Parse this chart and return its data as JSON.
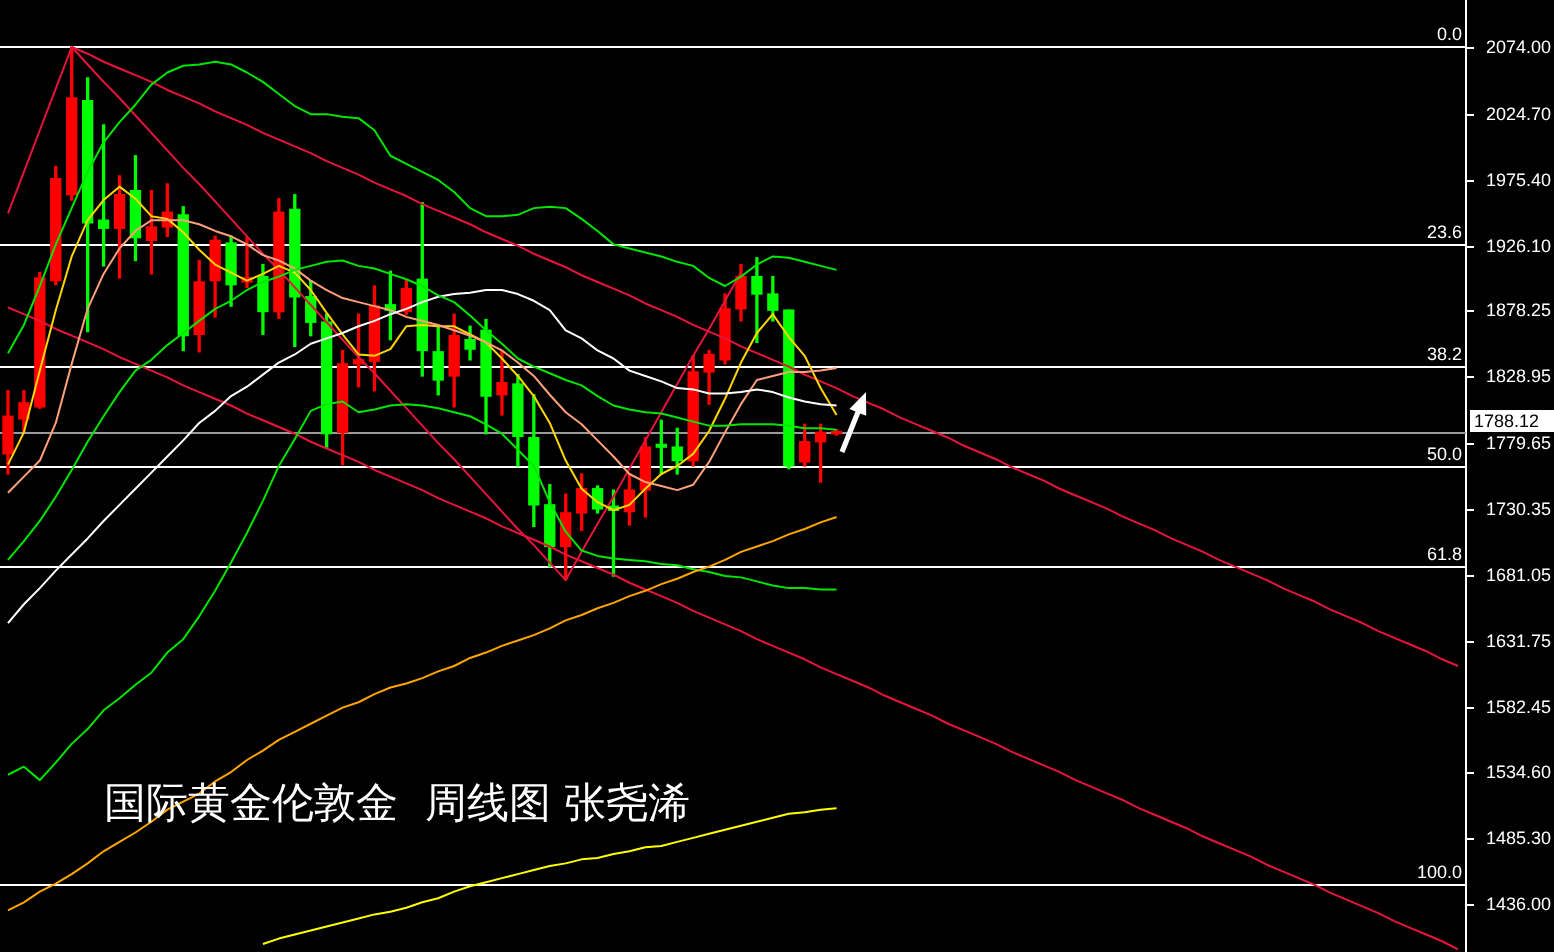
{
  "chart_data": {
    "type": "candlestick",
    "title": "国际黄金伦敦金  周线图 张尧浠",
    "categories": [
      null,
      null,
      null,
      null,
      null,
      null,
      null,
      null,
      null,
      null,
      null,
      null,
      null,
      null,
      null,
      null,
      null,
      null,
      null,
      null,
      null,
      null,
      null,
      null,
      null,
      null,
      null,
      null,
      null,
      null,
      null,
      null,
      null,
      null,
      null,
      null,
      null,
      null,
      null,
      null,
      null,
      null,
      null,
      null,
      null,
      null,
      null,
      null,
      null,
      null,
      null,
      null,
      null,
      null,
      null,
      null,
      null,
      null,
      null,
      null,
      null,
      null,
      null,
      null,
      null,
      null,
      null,
      null,
      null,
      null,
      null,
      null,
      null,
      null,
      null,
      null,
      null,
      null,
      null,
      null,
      null,
      null,
      null,
      null,
      null,
      null,
      null,
      null,
      null,
      null,
      null,
      null
    ],
    "ohlc": [
      [
        1772,
        1819,
        1757,
        1800
      ],
      [
        1798,
        1819,
        1789,
        1810
      ],
      [
        1807,
        1907,
        1806,
        1903
      ],
      [
        1901,
        1986,
        1898,
        1977
      ],
      [
        1965,
        2075,
        1961,
        2037
      ],
      [
        2035,
        2052,
        1863,
        1944
      ],
      [
        1946,
        2017,
        1912,
        1940
      ],
      [
        1940,
        1979,
        1903,
        1965
      ],
      [
        1968,
        1994,
        1916,
        1933
      ],
      [
        1931,
        1968,
        1906,
        1941
      ],
      [
        1941,
        1973,
        1934,
        1952
      ],
      [
        1950,
        1956,
        1849,
        1860
      ],
      [
        1861,
        1916,
        1848,
        1900
      ],
      [
        1901,
        1934,
        1874,
        1931
      ],
      [
        1929,
        1934,
        1882,
        1898
      ],
      [
        1900,
        1933,
        1896,
        1903
      ],
      [
        1904,
        1913,
        1861,
        1878
      ],
      [
        1878,
        1962,
        1873,
        1952
      ],
      [
        1954,
        1965,
        1852,
        1889
      ],
      [
        1889,
        1901,
        1860,
        1870
      ],
      [
        1870,
        1876,
        1777,
        1787
      ],
      [
        1788,
        1849,
        1764,
        1839
      ],
      [
        1839,
        1876,
        1822,
        1842
      ],
      [
        1841,
        1897,
        1819,
        1882
      ],
      [
        1883,
        1908,
        1857,
        1879
      ],
      [
        1878,
        1901,
        1876,
        1895
      ],
      [
        1902,
        1959,
        1830,
        1849
      ],
      [
        1848,
        1867,
        1816,
        1827
      ],
      [
        1830,
        1876,
        1807,
        1860
      ],
      [
        1857,
        1867,
        1842,
        1850
      ],
      [
        1864,
        1872,
        1787,
        1815
      ],
      [
        1816,
        1849,
        1801,
        1825
      ],
      [
        1824,
        1831,
        1763,
        1785
      ],
      [
        1784,
        1816,
        1718,
        1734
      ],
      [
        1734,
        1749,
        1688,
        1703
      ],
      [
        1703,
        1742,
        1678,
        1728
      ],
      [
        1728,
        1757,
        1715,
        1746
      ],
      [
        1746,
        1748,
        1728,
        1731
      ],
      [
        1733,
        1745,
        1681,
        1730
      ],
      [
        1729,
        1757,
        1719,
        1745
      ],
      [
        1745,
        1784,
        1725,
        1777
      ],
      [
        1779,
        1797,
        1757,
        1777
      ],
      [
        1777,
        1791,
        1757,
        1767
      ],
      [
        1767,
        1845,
        1763,
        1833
      ],
      [
        1833,
        1849,
        1809,
        1846
      ],
      [
        1842,
        1891,
        1839,
        1880
      ],
      [
        1880,
        1913,
        1871,
        1904
      ],
      [
        1904,
        1918,
        1855,
        1891
      ],
      [
        1891,
        1904,
        1871,
        1879
      ],
      [
        1879,
        1879,
        1761,
        1763
      ],
      [
        1766,
        1794,
        1763,
        1781
      ],
      [
        1781,
        1794,
        1751,
        1788
      ],
      [
        1787,
        1790,
        1786,
        1788.12
      ],
      null,
      null,
      null,
      null,
      null,
      null,
      null,
      null,
      null,
      null,
      null,
      null,
      null,
      null,
      null,
      null,
      null,
      null,
      null,
      null,
      null,
      null,
      null,
      null,
      null,
      null,
      null,
      null,
      null,
      null,
      null,
      null,
      null,
      null,
      null,
      null,
      null,
      null,
      null
    ],
    "colors": [
      "#ff0000",
      "#ff0000",
      "#ff0000",
      "#ff0000",
      "#ff0000",
      "#00ff00",
      "#00ff00",
      "#ff0000",
      "#00ff00",
      "#ff0000",
      "#ff0000",
      "#00ff00",
      "#ff0000",
      "#ff0000",
      "#00ff00",
      "#ff0000",
      "#00ff00",
      "#ff0000",
      "#00ff00",
      "#00ff00",
      "#00ff00",
      "#ff0000",
      "#ff0000",
      "#ff0000",
      "#00ff00",
      "#ff0000",
      "#00ff00",
      "#00ff00",
      "#ff0000",
      "#00ff00",
      "#00ff00",
      "#ff0000",
      "#00ff00",
      "#00ff00",
      "#00ff00",
      "#ff0000",
      "#ff0000",
      "#00ff00",
      "#00ff00",
      "#ff0000",
      "#ff0000",
      "#00ff00",
      "#00ff00",
      "#ff0000",
      "#ff0000",
      "#ff0000",
      "#ff0000",
      "#00ff00",
      "#00ff00",
      "#00ff00",
      "#ff0000",
      "#ff0000",
      "#ff0000",
      null,
      null,
      null,
      null,
      null,
      null,
      null,
      null,
      null,
      null,
      null,
      null,
      null,
      null,
      null,
      null,
      null,
      null,
      null,
      null,
      null,
      null,
      null,
      null,
      null,
      null,
      null,
      null,
      null,
      null,
      null,
      null,
      null,
      null,
      null,
      null,
      null,
      null,
      null
    ],
    "series": [
      {
        "type": "line",
        "color": "#ffff00",
        "values": [
          null,
          null,
          null,
          null,
          null,
          null,
          null,
          null,
          null,
          null,
          null,
          null,
          null,
          null,
          null,
          null,
          1407,
          1411,
          1414,
          1417,
          1420,
          1423,
          1426,
          1429,
          1431,
          1434,
          1438,
          1441,
          1446,
          1450,
          1453,
          1456,
          1459,
          1462,
          1465,
          1467,
          1470,
          1471,
          1474,
          1476,
          1479,
          1480,
          1483,
          1486,
          1489,
          1492,
          1495,
          1498,
          1501,
          1504,
          1505,
          1507,
          1508,
          null,
          null,
          null,
          null,
          null,
          null,
          null,
          null,
          null,
          null,
          null,
          null,
          null,
          null,
          null,
          null,
          null,
          null,
          null,
          null,
          null,
          null,
          null,
          null,
          null,
          null,
          null,
          null,
          null,
          null,
          null,
          null,
          null,
          null,
          null,
          null,
          null,
          null,
          null
        ]
      },
      {
        "type": "line",
        "color": "#ffa500",
        "values": [
          1432,
          1438,
          1446,
          1452,
          1459,
          1467,
          1476,
          1483,
          1490,
          1498,
          1507,
          1513,
          1519,
          1528,
          1535,
          1544,
          1551,
          1559,
          1565,
          1571,
          1577,
          1583,
          1587,
          1593,
          1598,
          1601,
          1605,
          1610,
          1614,
          1620,
          1624,
          1629,
          1633,
          1637,
          1642,
          1648,
          1652,
          1657,
          1661,
          1666,
          1670,
          1675,
          1679,
          1684,
          1688,
          1693,
          1699,
          1703,
          1707,
          1712,
          1716,
          1721,
          1725,
          null,
          null,
          null,
          null,
          null,
          null,
          null,
          null,
          null,
          null,
          null,
          null,
          null,
          null,
          null,
          null,
          null,
          null,
          null,
          null,
          null,
          null,
          null,
          null,
          null,
          null,
          null,
          null,
          null,
          null,
          null,
          null,
          null,
          null,
          null,
          null,
          null,
          null,
          null
        ]
      },
      {
        "type": "line",
        "color": "#00e600",
        "values": [
          1847,
          1868,
          1897,
          1928,
          1955,
          1982,
          2004,
          2019,
          2032,
          2047,
          2056,
          2061,
          2062,
          2064,
          2062,
          2056,
          2049,
          2040,
          2031,
          2025,
          2025,
          2023,
          2022,
          2013,
          1994,
          1988,
          1982,
          1976,
          1967,
          1955,
          1949,
          1949,
          1950,
          1955,
          1956,
          1955,
          1947,
          1938,
          1928,
          1925,
          1922,
          1919,
          1915,
          1912,
          1903,
          1897,
          1904,
          1913,
          1919,
          1918,
          1915,
          1912,
          1909,
          null,
          null,
          null,
          null,
          null,
          null,
          null,
          null,
          null,
          null,
          null,
          null,
          null,
          null,
          null,
          null,
          null,
          null,
          null,
          null,
          null,
          null,
          null,
          null,
          null,
          null,
          null,
          null,
          null,
          null,
          null,
          null,
          null,
          null,
          null,
          null,
          null,
          null,
          null
        ]
      },
      {
        "type": "line",
        "color": "#00e600",
        "values": [
          1693,
          1707,
          1722,
          1740,
          1760,
          1781,
          1800,
          1818,
          1834,
          1842,
          1853,
          1862,
          1871,
          1880,
          1886,
          1894,
          1900,
          1904,
          1909,
          1912,
          1915,
          1916,
          1912,
          1910,
          1906,
          1902,
          1897,
          1890,
          1885,
          1875,
          1864,
          1854,
          1843,
          1837,
          1832,
          1827,
          1823,
          1815,
          1808,
          1805,
          1803,
          1802,
          1799,
          1796,
          1793,
          1793,
          1794,
          1794,
          1794,
          1793,
          1791,
          1791,
          1790,
          null,
          null,
          null,
          null,
          null,
          null,
          null,
          null,
          null,
          null,
          null,
          null,
          null,
          null,
          null,
          null,
          null,
          null,
          null,
          null,
          null,
          null,
          null,
          null,
          null,
          null,
          null,
          null,
          null,
          null,
          null,
          null,
          null,
          null,
          null,
          null,
          null,
          null,
          null
        ]
      },
      {
        "type": "line",
        "color": "#00e600",
        "values": [
          1533,
          1539,
          1529,
          1542,
          1556,
          1567,
          1581,
          1590,
          1600,
          1609,
          1624,
          1634,
          1651,
          1670,
          1691,
          1713,
          1737,
          1763,
          1783,
          1804,
          1809,
          1811,
          1803,
          1805,
          1808,
          1809,
          1808,
          1806,
          1803,
          1800,
          1794,
          1787,
          1775,
          1763,
          1736,
          1714,
          1700,
          1696,
          1694,
          1693,
          1692,
          1690,
          1689,
          1686,
          1684,
          1681,
          1680,
          1677,
          1674,
          1672,
          1672,
          1671,
          1671,
          null,
          null,
          null,
          null,
          null,
          null,
          null,
          null,
          null,
          null,
          null,
          null,
          null,
          null,
          null,
          null,
          null,
          null,
          null,
          null,
          null,
          null,
          null,
          null,
          null,
          null,
          null,
          null,
          null,
          null,
          null,
          null,
          null,
          null,
          null,
          null,
          null,
          null,
          null
        ]
      },
      {
        "type": "line",
        "color": "#ffffff",
        "values": [
          1646,
          1660,
          1672,
          1685,
          1697,
          1709,
          1722,
          1734,
          1746,
          1758,
          1770,
          1782,
          1795,
          1804,
          1815,
          1822,
          1831,
          1840,
          1846,
          1854,
          1858,
          1862,
          1867,
          1871,
          1876,
          1880,
          1885,
          1889,
          1891,
          1892,
          1894,
          1894,
          1891,
          1886,
          1879,
          1864,
          1858,
          1849,
          1843,
          1834,
          1830,
          1826,
          1821,
          1820,
          1817,
          1817,
          1818,
          1820,
          1818,
          1814,
          1811,
          1809,
          1808,
          null,
          null,
          null,
          null,
          null,
          null,
          null,
          null,
          null,
          null,
          null,
          null,
          null,
          null,
          null,
          null,
          null,
          null,
          null,
          null,
          null,
          null,
          null,
          null,
          null,
          null,
          null,
          null,
          null,
          null,
          null,
          null,
          null,
          null,
          null,
          null,
          null,
          null,
          null
        ]
      },
      {
        "type": "line",
        "color": "#ffa07a",
        "values": [
          1743,
          1755,
          1767,
          1795,
          1839,
          1880,
          1906,
          1925,
          1938,
          1946,
          1946,
          1946,
          1943,
          1938,
          1934,
          1928,
          1920,
          1916,
          1910,
          1901,
          1894,
          1888,
          1885,
          1882,
          1879,
          1874,
          1871,
          1868,
          1864,
          1860,
          1855,
          1849,
          1840,
          1830,
          1816,
          1803,
          1794,
          1782,
          1770,
          1757,
          1751,
          1748,
          1745,
          1749,
          1766,
          1788,
          1809,
          1827,
          1830,
          1833,
          1833,
          1834,
          1836,
          null,
          null,
          null,
          null,
          null,
          null,
          null,
          null,
          null,
          null,
          null,
          null,
          null,
          null,
          null,
          null,
          null,
          null,
          null,
          null,
          null,
          null,
          null,
          null,
          null,
          null,
          null,
          null,
          null,
          null,
          null,
          null,
          null,
          null,
          null,
          null,
          null,
          null,
          null
        ]
      },
      {
        "type": "line",
        "color": "#ffd700",
        "values": [
          1764,
          1788,
          1834,
          1879,
          1919,
          1946,
          1961,
          1971,
          1962,
          1949,
          1947,
          1937,
          1924,
          1913,
          1907,
          1901,
          1906,
          1912,
          1907,
          1894,
          1877,
          1861,
          1846,
          1845,
          1850,
          1867,
          1868,
          1867,
          1867,
          1861,
          1855,
          1843,
          1830,
          1815,
          1795,
          1767,
          1746,
          1736,
          1730,
          1734,
          1746,
          1757,
          1763,
          1772,
          1789,
          1813,
          1840,
          1862,
          1876,
          1859,
          1845,
          1821,
          1801,
          null,
          null,
          null,
          null,
          null,
          null,
          null,
          null,
          null,
          null,
          null,
          null,
          null,
          null,
          null,
          null,
          null,
          null,
          null,
          null,
          null,
          null,
          null,
          null,
          null,
          null,
          null,
          null,
          null,
          null,
          null,
          null,
          null,
          null,
          null,
          null,
          null,
          null,
          null
        ]
      },
      {
        "type": "line",
        "color": "#e8143c",
        "values": [
          null,
          null,
          null,
          null,
          2075,
          2070,
          2064,
          2059,
          2054,
          2049,
          2043,
          2038,
          2033,
          2027,
          2022,
          2017,
          2011,
          2006,
          2001,
          1996,
          1990,
          1985,
          1980,
          1974,
          1969,
          1964,
          1958,
          1953,
          1948,
          1943,
          1937,
          1932,
          1927,
          1921,
          1916,
          1911,
          1905,
          1900,
          1895,
          1890,
          1884,
          1879,
          1874,
          1868,
          1863,
          1858,
          1852,
          1847,
          1842,
          1837,
          1831,
          1826,
          1821,
          1815,
          1810,
          1805,
          1799,
          1794,
          1789,
          1784,
          1778,
          1773,
          1768,
          1762,
          1757,
          1752,
          1746,
          1741,
          1736,
          1731,
          1725,
          1720,
          1715,
          1709,
          1704,
          1699,
          1693,
          1688,
          1683,
          1678,
          1672,
          1667,
          1662,
          1656,
          1651,
          1646,
          1640,
          1635,
          1630,
          1625,
          1619,
          1614
        ]
      },
      {
        "type": "line",
        "color": "#e8143c",
        "values": [
          1881,
          1876,
          1871,
          1865,
          1860,
          1855,
          1850,
          1844,
          1839,
          1834,
          1829,
          1823,
          1818,
          1813,
          1808,
          1802,
          1797,
          1792,
          1787,
          1781,
          1776,
          1771,
          1766,
          1760,
          1755,
          1750,
          1745,
          1739,
          1734,
          1729,
          1724,
          1718,
          1713,
          1708,
          1703,
          1697,
          1692,
          1687,
          1682,
          1676,
          1671,
          1666,
          1661,
          1655,
          1650,
          1645,
          1640,
          1634,
          1629,
          1624,
          1619,
          1613,
          1608,
          1603,
          1598,
          1592,
          1587,
          1582,
          1577,
          1571,
          1566,
          1561,
          1556,
          1550,
          1545,
          1540,
          1535,
          1529,
          1524,
          1519,
          1514,
          1508,
          1503,
          1498,
          1493,
          1487,
          1482,
          1477,
          1472,
          1466,
          1461,
          1456,
          1451,
          1445,
          1440,
          1435,
          1430,
          1424,
          1419,
          1414,
          1409,
          1403
        ]
      },
      {
        "type": "line",
        "color": "#e8143c",
        "values": [
          null,
          null,
          null,
          null,
          2075,
          2062,
          2049,
          2037,
          2024,
          2011,
          1998,
          1985,
          1973,
          1960,
          1947,
          1934,
          1921,
          1909,
          1896,
          1883,
          1870,
          1857,
          1844,
          1832,
          1819,
          1806,
          1793,
          1780,
          1768,
          1755,
          1742,
          1729,
          1716,
          1704,
          1691,
          1678,
          null,
          null,
          null,
          null,
          null,
          null,
          null,
          null,
          null,
          null,
          null,
          null,
          null,
          null,
          null,
          null,
          null,
          null,
          null,
          null,
          null,
          null,
          null,
          null,
          null,
          null,
          null,
          null,
          null,
          null,
          null,
          null,
          null,
          null,
          null,
          null,
          null,
          null,
          null,
          null,
          null,
          null,
          null,
          null,
          null,
          null,
          null,
          null,
          null,
          null,
          null,
          null,
          null,
          null,
          null,
          null
        ]
      },
      {
        "type": "line",
        "color": "#e8143c",
        "values": [
          null,
          null,
          null,
          null,
          null,
          null,
          null,
          null,
          null,
          null,
          null,
          null,
          null,
          null,
          null,
          null,
          null,
          null,
          null,
          null,
          null,
          null,
          null,
          null,
          null,
          null,
          null,
          null,
          null,
          null,
          null,
          null,
          null,
          null,
          null,
          1678,
          1699,
          1720,
          1740,
          1761,
          1782,
          1803,
          1824,
          1845,
          1865,
          1886,
          1907,
          null,
          null,
          null,
          null,
          null,
          null,
          null,
          null,
          null,
          null,
          null,
          null,
          null,
          null,
          null,
          null,
          null,
          null,
          null,
          null,
          null,
          null,
          null,
          null,
          null,
          null,
          null,
          null,
          null,
          null,
          null,
          null,
          null,
          null,
          null,
          null,
          null,
          null,
          null,
          null,
          null,
          null,
          null,
          null,
          null
        ]
      },
      {
        "type": "line",
        "color": "#e8143c",
        "values": [
          1951,
          1982,
          2013,
          2044,
          2075,
          null,
          null,
          null,
          null,
          null,
          null,
          null,
          null,
          null,
          null,
          null,
          null,
          null,
          null,
          null,
          null,
          null,
          null,
          null,
          null,
          null,
          null,
          null,
          null,
          null,
          null,
          null,
          null,
          null,
          null,
          null,
          null,
          null,
          null,
          null,
          null,
          null,
          null,
          null,
          null,
          null,
          null,
          null,
          null,
          null,
          null,
          null,
          null,
          null,
          null,
          null,
          null,
          null,
          null,
          null,
          null,
          null,
          null,
          null,
          null,
          null,
          null,
          null,
          null,
          null,
          null,
          null,
          null,
          null,
          null,
          null,
          null,
          null,
          null,
          null,
          null,
          null,
          null,
          null,
          null,
          null,
          null,
          null,
          null,
          null,
          null,
          null
        ]
      }
    ],
    "ylim": [
      1401,
      2110
    ],
    "yticks": [
      {
        "value": 2074,
        "label": "2074.00"
      },
      {
        "value": 2024.7,
        "label": "2024.70"
      },
      {
        "value": 1975.4,
        "label": "1975.40"
      },
      {
        "value": 1926.1,
        "label": "1926.10"
      },
      {
        "value": 1878.25,
        "label": "1878.25"
      },
      {
        "value": 1828.95,
        "label": "1828.95"
      },
      {
        "value": 1779.65,
        "label": "1779.65"
      },
      {
        "value": 1730.35,
        "label": "1730.35"
      },
      {
        "value": 1681.05,
        "label": "1681.05"
      },
      {
        "value": 1631.75,
        "label": "1631.75"
      },
      {
        "value": 1582.45,
        "label": "1582.45"
      },
      {
        "value": 1534.6,
        "label": "1534.60"
      },
      {
        "value": 1485.3,
        "label": "1485.30"
      },
      {
        "value": 1436,
        "label": "1436.00"
      }
    ],
    "ref_lines": [
      {
        "axis": "y",
        "value": 2075,
        "color": "#ffffff"
      },
      {
        "axis": "y",
        "value": 1928,
        "color": "#ffffff"
      },
      {
        "axis": "y",
        "value": 1837,
        "color": "#ffffff"
      },
      {
        "axis": "y",
        "value": 1763,
        "color": "#ffffff"
      },
      {
        "axis": "y",
        "value": 1689,
        "color": "#ffffff"
      },
      {
        "axis": "y",
        "value": 1451,
        "color": "#ffffff"
      },
      {
        "axis": "y",
        "value": 1788.12,
        "label": "1788.12",
        "color": "#9a9a9a"
      }
    ],
    "annotations": [
      {
        "text": "0.0",
        "y": 2075
      },
      {
        "text": "23.6",
        "y": 1928
      },
      {
        "text": "38.2",
        "y": 1837
      },
      {
        "text": "50.0",
        "y": 1763
      },
      {
        "text": "61.8",
        "y": 1689
      },
      {
        "text": "100.0",
        "y": 1451
      }
    ],
    "tick_labels": "y"
  }
}
